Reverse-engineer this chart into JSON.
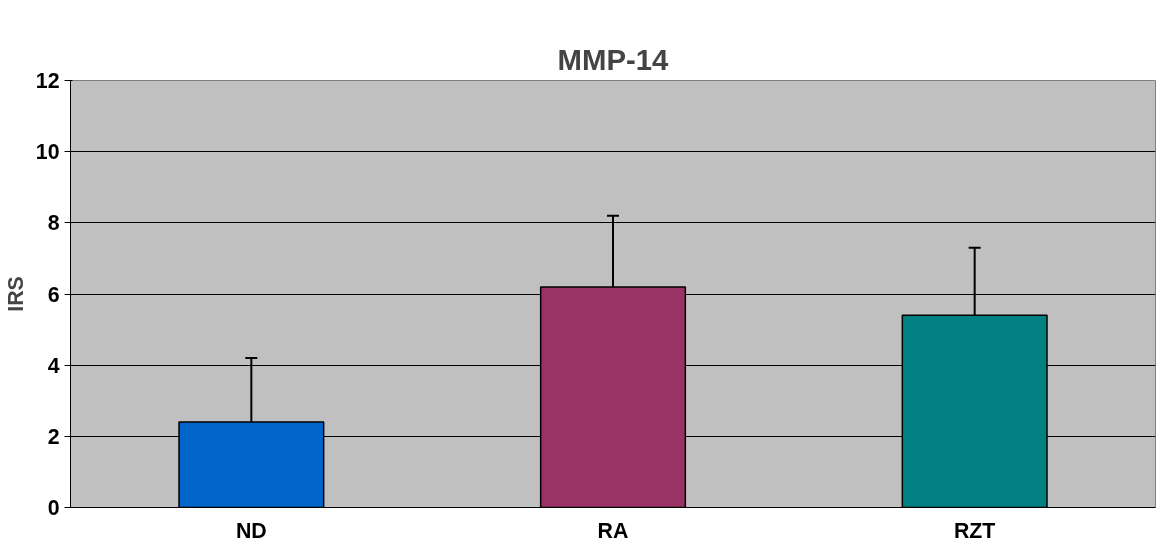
{
  "chart_data": {
    "type": "bar",
    "title": "MMP-14",
    "ylabel": "IRS",
    "categories": [
      "ND",
      "RA",
      "RZT"
    ],
    "values": [
      2.4,
      6.2,
      5.4
    ],
    "colors": [
      "#0066cc",
      "#993366",
      "#008080"
    ],
    "errors": [
      1.8,
      2.0,
      1.9
    ],
    "ylim": [
      0,
      12
    ],
    "yticks": [
      0,
      2,
      4,
      6,
      8,
      10,
      12
    ],
    "grid": "y"
  }
}
